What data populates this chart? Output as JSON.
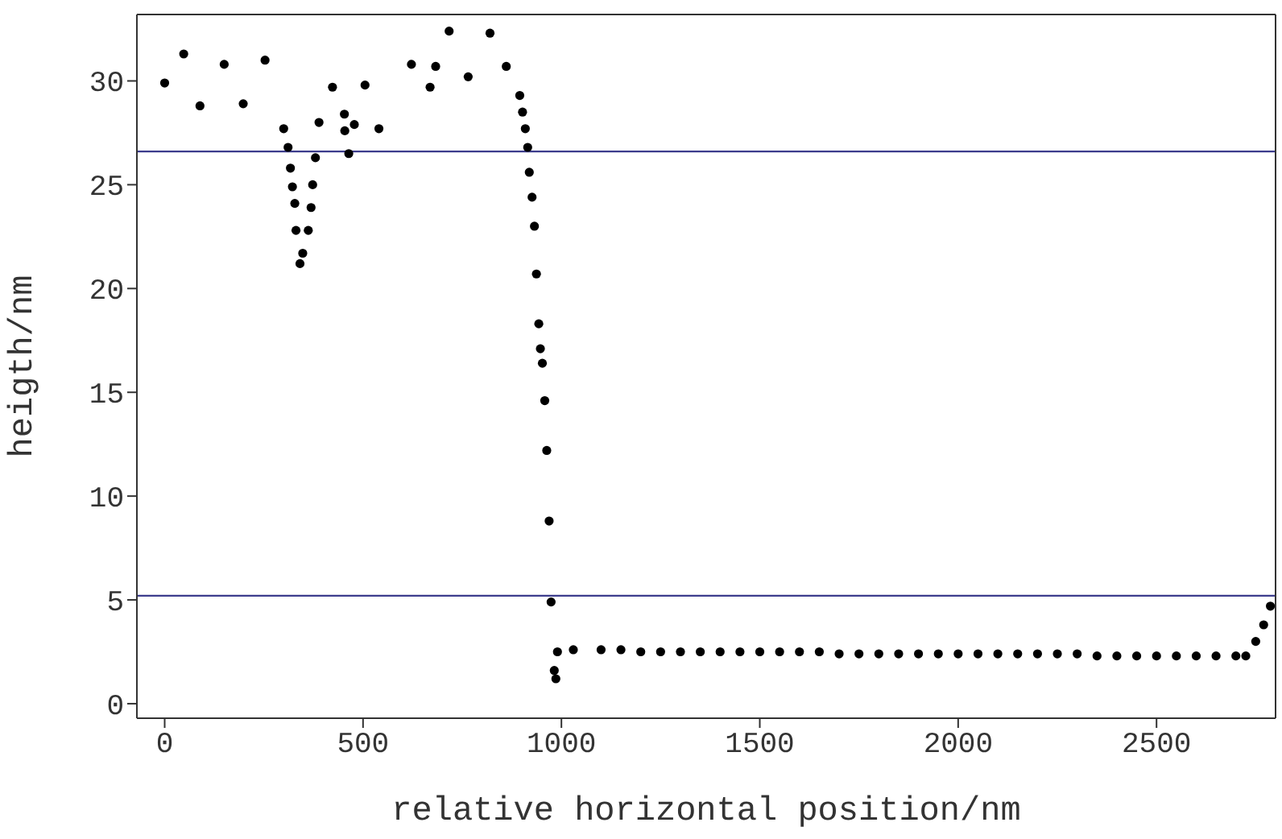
{
  "chart_data": {
    "type": "scatter",
    "xlabel": "relative horizontal position/nm",
    "ylabel": "heigth/nm",
    "x": [
      0,
      48,
      89,
      150,
      198,
      253,
      300,
      311,
      317,
      322,
      328,
      331,
      341,
      348,
      362,
      369,
      373,
      380,
      389,
      423,
      453,
      454,
      464,
      478,
      505,
      540,
      622,
      669,
      683,
      717,
      765,
      820,
      861,
      895,
      902,
      909,
      915,
      919,
      926,
      932,
      937,
      943,
      947,
      952,
      958,
      963,
      969,
      974,
      982,
      986,
      990,
      1030,
      1100,
      1150,
      1200,
      1250,
      1300,
      1350,
      1400,
      1450,
      1500,
      1550,
      1600,
      1650,
      1700,
      1750,
      1800,
      1850,
      1900,
      1950,
      2000,
      2050,
      2100,
      2150,
      2200,
      2250,
      2300,
      2350,
      2400,
      2450,
      2500,
      2550,
      2600,
      2650,
      2700,
      2725,
      2750,
      2770,
      2787
    ],
    "series": [
      {
        "color": "#000000",
        "values": [
          29.9,
          31.3,
          28.8,
          30.8,
          28.9,
          31.0,
          27.7,
          26.8,
          25.8,
          24.9,
          24.1,
          22.8,
          21.2,
          21.7,
          22.8,
          23.9,
          25.0,
          26.3,
          28.0,
          29.7,
          28.4,
          27.6,
          26.5,
          27.9,
          29.8,
          27.7,
          30.8,
          29.7,
          30.7,
          32.4,
          30.2,
          32.3,
          30.7,
          29.3,
          28.5,
          27.7,
          26.8,
          25.6,
          24.4,
          23.0,
          20.7,
          18.3,
          17.1,
          16.4,
          14.6,
          12.2,
          8.8,
          4.9,
          1.6,
          1.2,
          2.5,
          2.6,
          2.6,
          2.6,
          2.5,
          2.5,
          2.5,
          2.5,
          2.5,
          2.5,
          2.5,
          2.5,
          2.5,
          2.5,
          2.4,
          2.4,
          2.4,
          2.4,
          2.4,
          2.4,
          2.4,
          2.4,
          2.4,
          2.4,
          2.4,
          2.4,
          2.4,
          2.3,
          2.3,
          2.3,
          2.3,
          2.3,
          2.3,
          2.3,
          2.3,
          2.3,
          3.0,
          3.8,
          4.7
        ]
      }
    ],
    "marker": "circle",
    "xlim": [
      -70,
      2800
    ],
    "xticks": [
      0,
      500,
      1000,
      1500,
      2000,
      2500
    ],
    "ylim": [
      -0.7,
      33.2
    ],
    "yticks": [
      0,
      5,
      10,
      15,
      20,
      25,
      30
    ],
    "grid": false,
    "legend": false,
    "ref_lines": [
      {
        "axis": "y",
        "value": 26.6,
        "color": "#3c3c8c"
      },
      {
        "axis": "y",
        "value": 5.2,
        "color": "#3c3c8c"
      }
    ]
  }
}
